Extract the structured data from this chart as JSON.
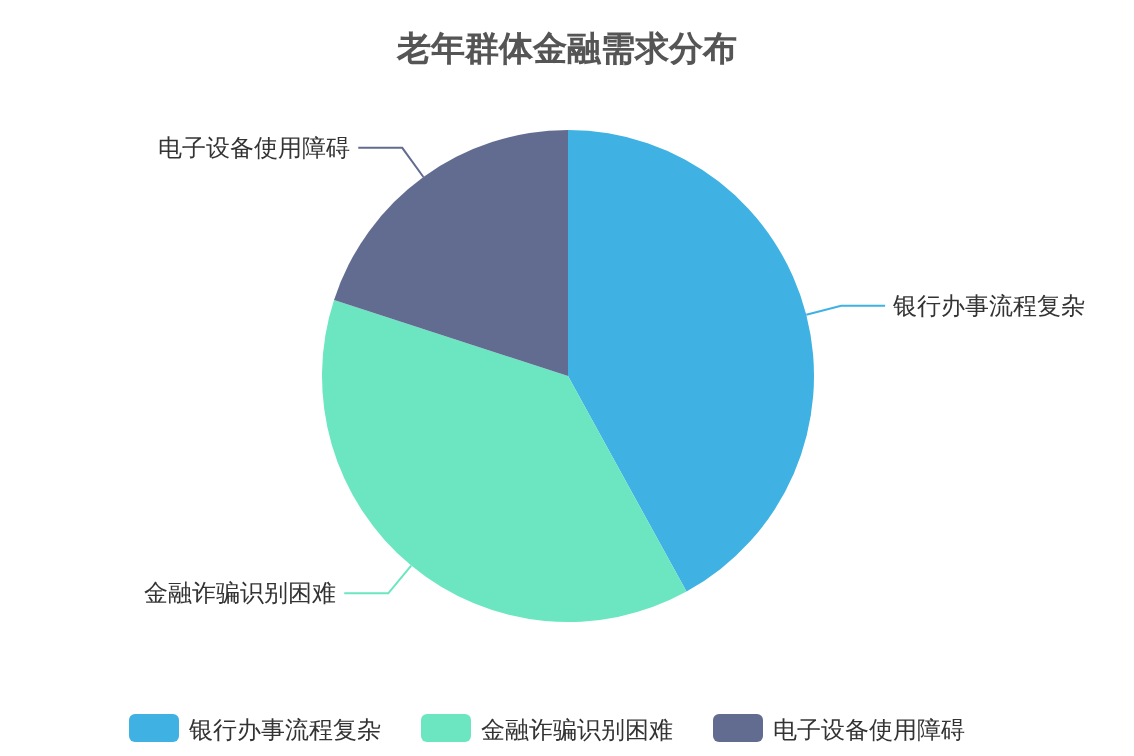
{
  "chart_data": {
    "type": "pie",
    "title": "老年群体金融需求分布",
    "categories": [
      "银行办事流程复杂",
      "金融诈骗识别困难",
      "电子设备使用障碍"
    ],
    "values": [
      42,
      38,
      20
    ],
    "colors": [
      "#3fb1e3",
      "#6be6c1",
      "#626c91"
    ],
    "legend": "bottom"
  }
}
